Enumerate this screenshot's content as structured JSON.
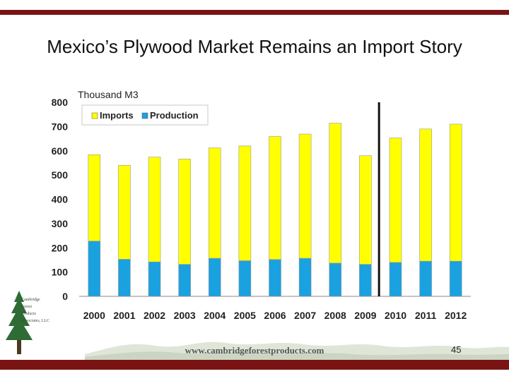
{
  "slide": {
    "title": "Mexico’s Plywood Market Remains an Import Story",
    "footer_url": "www.cambridgeforestproducts.com",
    "page_number": "45",
    "accent_color": "#7a1414"
  },
  "logo": {
    "lines": [
      "Cambridge",
      "Forest",
      "Products",
      "Associates, LLC"
    ],
    "icon": "pine-tree-icon"
  },
  "chart_data": {
    "type": "bar",
    "stacked": true,
    "unit_label": "Thousand M3",
    "categories": [
      "2000",
      "2001",
      "2002",
      "2003",
      "2004",
      "2005",
      "2006",
      "2007",
      "2008",
      "2009",
      "2010",
      "2011",
      "2012"
    ],
    "series": [
      {
        "name": "Production",
        "color": "#1aa1e0",
        "values": [
          228,
          153,
          142,
          132,
          157,
          147,
          152,
          157,
          137,
          132,
          140,
          145,
          145
        ]
      },
      {
        "name": "Imports",
        "color": "#ffff00",
        "values": [
          356,
          387,
          432,
          434,
          455,
          473,
          507,
          512,
          577,
          448,
          513,
          545,
          565
        ]
      }
    ],
    "ylim": [
      0,
      800
    ],
    "yticks": [
      0,
      100,
      200,
      300,
      400,
      500,
      600,
      700,
      800
    ],
    "divider_after": "2009",
    "legend_position": "top-left",
    "grid": false
  }
}
